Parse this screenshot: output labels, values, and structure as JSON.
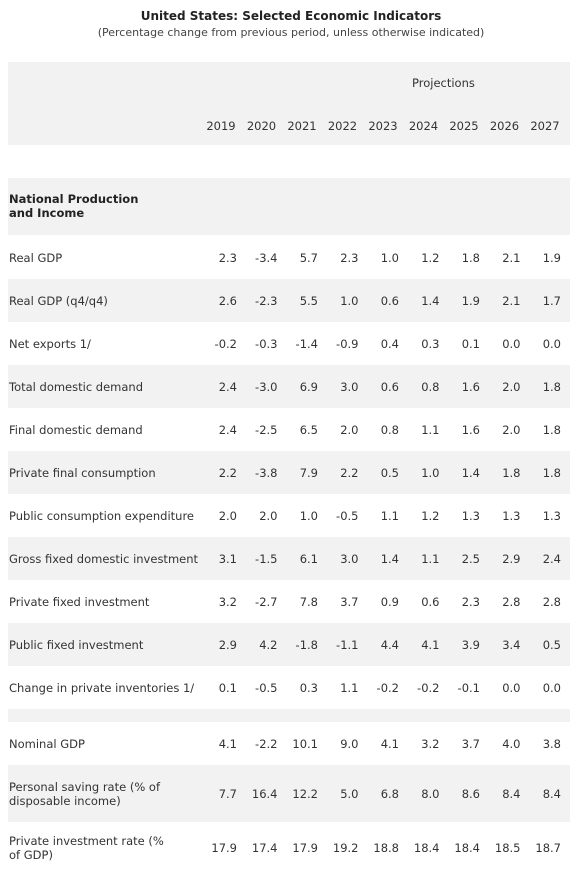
{
  "header": {
    "title": "United States: Selected Economic Indicators",
    "subtitle": "(Percentage change from previous period, unless otherwise indicated)"
  },
  "table": {
    "projections_label": "Projections",
    "years": [
      "2019",
      "2020",
      "2021",
      "2022",
      "2023",
      "2024",
      "2025",
      "2026",
      "2027"
    ],
    "section": "National Production and Income",
    "rows": [
      {
        "label": "Real GDP",
        "values": [
          "2.3",
          "-3.4",
          "5.7",
          "2.3",
          "1.0",
          "1.2",
          "1.8",
          "2.1",
          "1.9"
        ]
      },
      {
        "label": "Real GDP (q4/q4)",
        "values": [
          "2.6",
          "-2.3",
          "5.5",
          "1.0",
          "0.6",
          "1.4",
          "1.9",
          "2.1",
          "1.7"
        ]
      },
      {
        "label": "Net exports 1/",
        "values": [
          "-0.2",
          "-0.3",
          "-1.4",
          "-0.9",
          "0.4",
          "0.3",
          "0.1",
          "0.0",
          "0.0"
        ]
      },
      {
        "label": "Total domestic demand",
        "values": [
          "2.4",
          "-3.0",
          "6.9",
          "3.0",
          "0.6",
          "0.8",
          "1.6",
          "2.0",
          "1.8"
        ]
      },
      {
        "label": "Final domestic demand",
        "values": [
          "2.4",
          "-2.5",
          "6.5",
          "2.0",
          "0.8",
          "1.1",
          "1.6",
          "2.0",
          "1.8"
        ]
      },
      {
        "label": "Private final consumption",
        "values": [
          "2.2",
          "-3.8",
          "7.9",
          "2.2",
          "0.5",
          "1.0",
          "1.4",
          "1.8",
          "1.8"
        ]
      },
      {
        "label": "Public consumption expenditure",
        "values": [
          "2.0",
          "2.0",
          "1.0",
          "-0.5",
          "1.1",
          "1.2",
          "1.3",
          "1.3",
          "1.3"
        ]
      },
      {
        "label": "Gross fixed domestic investment",
        "values": [
          "3.1",
          "-1.5",
          "6.1",
          "3.0",
          "1.4",
          "1.1",
          "2.5",
          "2.9",
          "2.4"
        ]
      },
      {
        "label": "Private fixed investment",
        "values": [
          "3.2",
          "-2.7",
          "7.8",
          "3.7",
          "0.9",
          "0.6",
          "2.3",
          "2.8",
          "2.8"
        ]
      },
      {
        "label": "Public fixed investment",
        "values": [
          "2.9",
          "4.2",
          "-1.8",
          "-1.1",
          "4.4",
          "4.1",
          "3.9",
          "3.4",
          "0.5"
        ]
      },
      {
        "label": "Change in private inventories 1/",
        "values": [
          "0.1",
          "-0.5",
          "0.3",
          "1.1",
          "-0.2",
          "-0.2",
          "-0.1",
          "0.0",
          "0.0"
        ]
      },
      {
        "label": "Nominal GDP",
        "values": [
          "4.1",
          "-2.2",
          "10.1",
          "9.0",
          "4.1",
          "3.2",
          "3.7",
          "4.0",
          "3.8"
        ]
      },
      {
        "label": "Personal saving rate (% of disposable income)",
        "values": [
          "7.7",
          "16.4",
          "12.2",
          "5.0",
          "6.8",
          "8.0",
          "8.6",
          "8.4",
          "8.4"
        ]
      },
      {
        "label": "Private investment rate (% of GDP)",
        "values": [
          "17.9",
          "17.4",
          "17.9",
          "19.2",
          "18.8",
          "18.4",
          "18.4",
          "18.5",
          "18.7"
        ]
      }
    ]
  }
}
